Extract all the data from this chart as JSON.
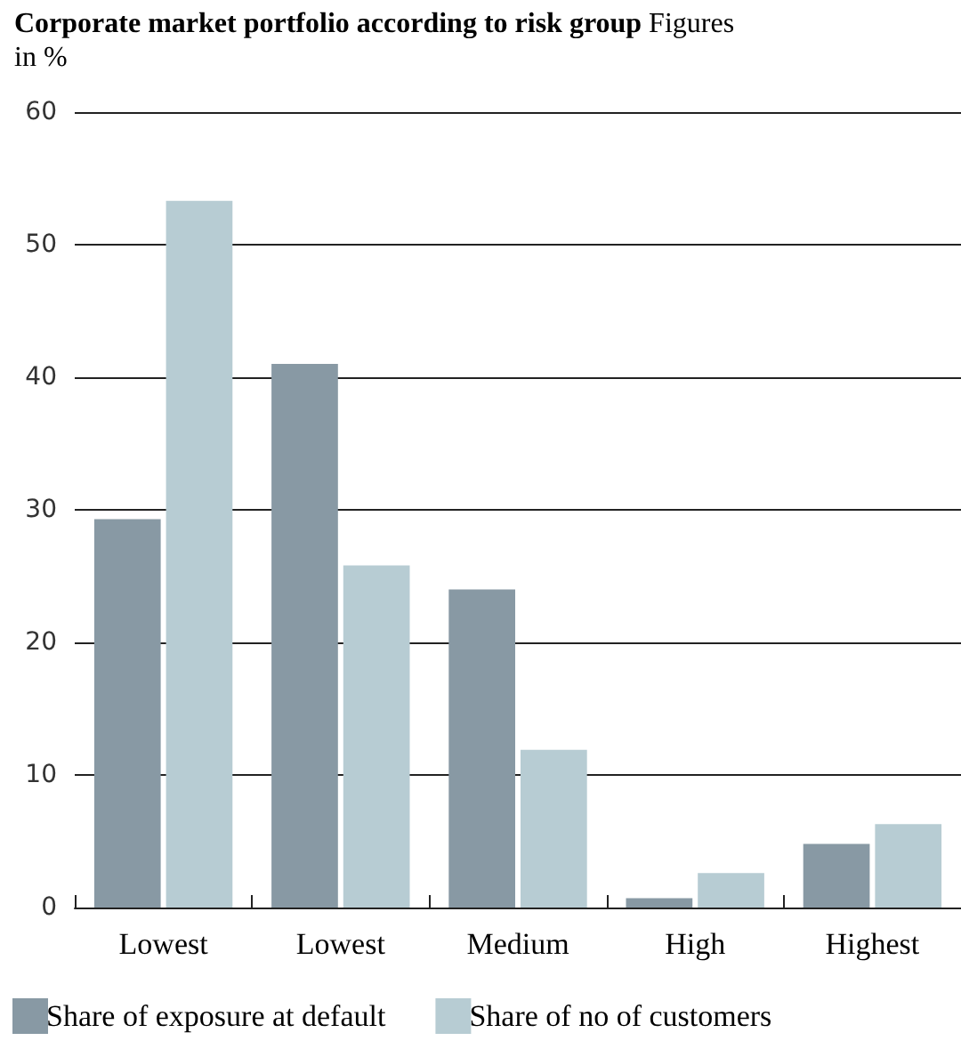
{
  "chart_data": {
    "type": "bar",
    "title": "Corporate market portfolio according to risk group",
    "subtitle": "Figures in %",
    "categories": [
      "Lowest",
      "Lowest",
      "Medium",
      "High",
      "Highest"
    ],
    "series": [
      {
        "name": "Share of exposure at default",
        "color": "#8899a4",
        "values": [
          29.3,
          41,
          24,
          0.7,
          4.8
        ]
      },
      {
        "name": "Share of no of customers",
        "color": "#b7ccd3",
        "values": [
          53.3,
          25.8,
          11.9,
          2.6,
          6.3
        ]
      }
    ],
    "ylim": [
      0,
      60
    ],
    "yticks": [
      0,
      10,
      20,
      30,
      40,
      50,
      60
    ],
    "grid": "y",
    "legend": "bottom"
  }
}
